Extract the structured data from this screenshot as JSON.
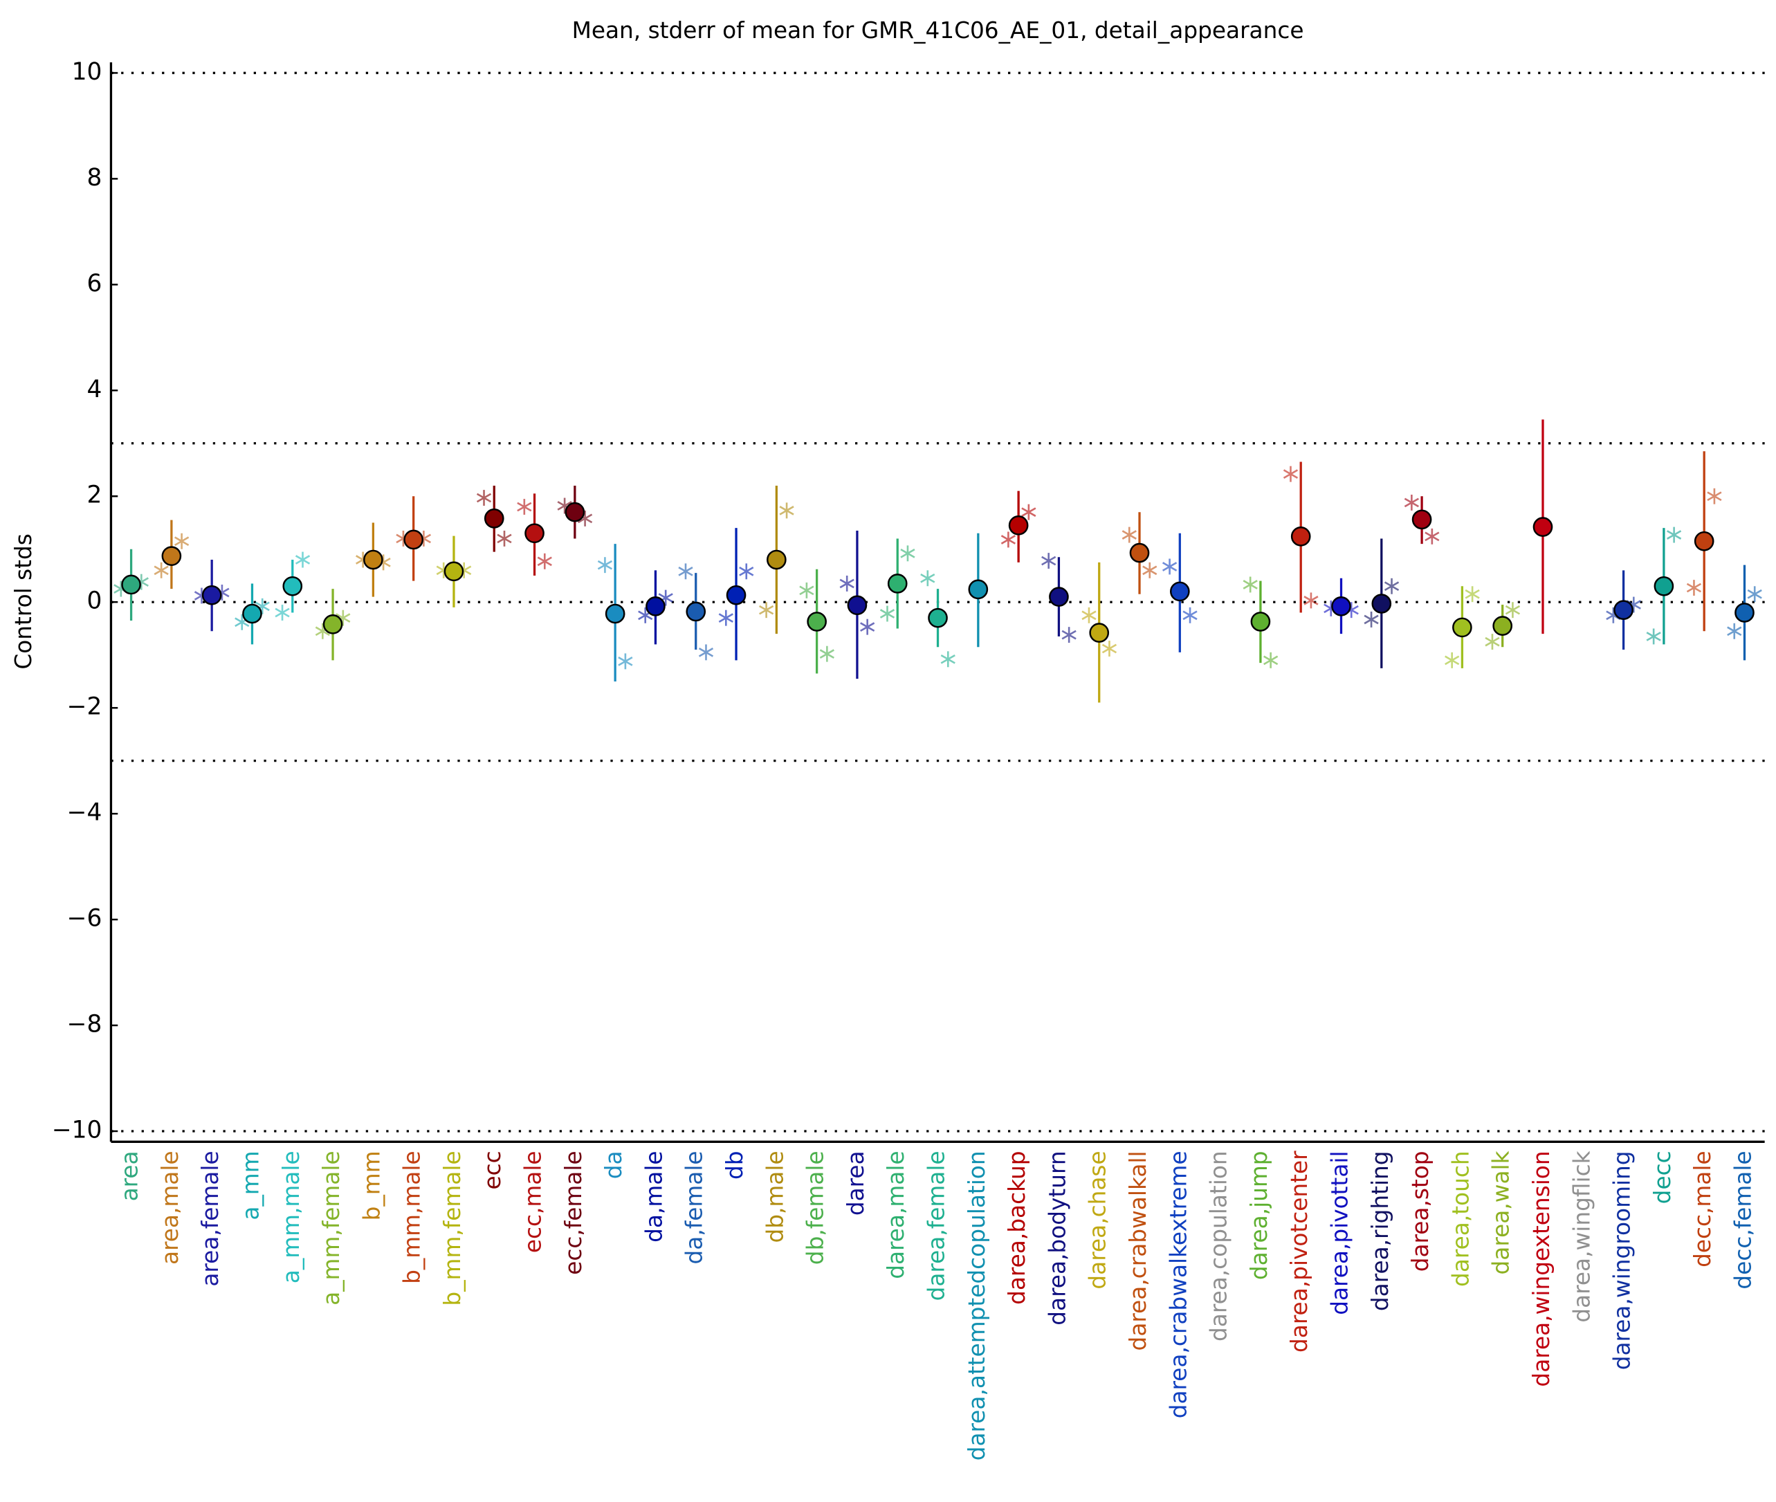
{
  "chart_data": {
    "type": "errorbar",
    "title": "Mean, stderr of mean for GMR_41C06_AE_01, detail_appearance",
    "y_label": "Control stds",
    "categories": [
      "area",
      "area,male",
      "area,female",
      "a_mm",
      "a_mm,male",
      "a_mm,female",
      "b_mm",
      "b_mm,male",
      "b_mm,female",
      "ecc",
      "ecc,male",
      "ecc,female",
      "da",
      "da,male",
      "da,female",
      "db",
      "db,male",
      "db,female",
      "darea",
      "darea,male",
      "darea,female",
      "darea,attemptedcopulation",
      "darea,backup",
      "darea,bodyturn",
      "darea,chase",
      "darea,crabwalkall",
      "darea,crabwalkextreme",
      "darea,copulation",
      "darea,jump",
      "darea,pivotcenter",
      "darea,pivottail",
      "darea,righting",
      "darea,stop",
      "darea,touch",
      "darea,walk",
      "darea,wingextension",
      "darea,wingflick",
      "darea,wingrooming",
      "decc",
      "decc,male",
      "decc,female"
    ],
    "colors": [
      "#2ea87e",
      "#c0761a",
      "#1a1aa0",
      "#14a8b0",
      "#22bcbc",
      "#84b42a",
      "#c08012",
      "#c24012",
      "#b4b410",
      "#800000",
      "#b41010",
      "#6e0010",
      "#1a8cc0",
      "#0010a0",
      "#1a5cb0",
      "#0020b4",
      "#b08c10",
      "#4cb04c",
      "#101090",
      "#2eb070",
      "#1eb090",
      "#1090b0",
      "#b40000",
      "#101080",
      "#c0a812",
      "#c05010",
      "#1040c0",
      "#909090",
      "#5eb030",
      "#c02010",
      "#1010c0",
      "#101060",
      "#a00010",
      "#a0c020",
      "#8cb020",
      "#c00010",
      "#909090",
      "#1030a0",
      "#10a090",
      "#c04010",
      "#1060b0"
    ],
    "mean": [
      0.33,
      0.87,
      0.13,
      -0.22,
      0.3,
      -0.42,
      0.8,
      1.18,
      0.58,
      1.58,
      1.3,
      1.7,
      -0.22,
      -0.08,
      -0.18,
      0.13,
      0.8,
      -0.37,
      -0.06,
      0.35,
      -0.3,
      0.24,
      1.45,
      0.1,
      -0.58,
      0.93,
      0.2,
      null,
      -0.37,
      1.24,
      -0.08,
      -0.03,
      1.56,
      -0.48,
      -0.45,
      1.42,
      null,
      -0.15,
      0.3,
      1.15,
      -0.2
    ],
    "err_low": [
      -0.35,
      0.25,
      -0.55,
      -0.8,
      -0.2,
      -1.1,
      0.1,
      0.4,
      -0.1,
      0.95,
      0.5,
      1.2,
      -1.5,
      -0.8,
      -0.9,
      -1.1,
      -0.6,
      -1.35,
      -1.45,
      -0.5,
      -0.85,
      -0.85,
      0.75,
      -0.65,
      -1.9,
      0.15,
      -0.95,
      null,
      -1.15,
      -0.2,
      -0.6,
      -1.25,
      1.1,
      -1.25,
      -0.85,
      -0.6,
      null,
      -0.9,
      -0.8,
      -0.55,
      -1.1
    ],
    "err_high": [
      1.0,
      1.55,
      0.8,
      0.35,
      0.8,
      0.25,
      1.5,
      2.0,
      1.25,
      2.2,
      2.05,
      2.2,
      1.1,
      0.6,
      0.55,
      1.4,
      2.2,
      0.62,
      1.35,
      1.2,
      0.25,
      1.3,
      2.1,
      0.85,
      0.75,
      1.7,
      1.3,
      null,
      0.4,
      2.65,
      0.45,
      1.2,
      2.0,
      0.3,
      -0.05,
      3.45,
      null,
      0.6,
      1.4,
      2.85,
      0.7
    ],
    "star_left": [
      0.25,
      0.6,
      0.12,
      -0.38,
      -0.2,
      -0.55,
      0.8,
      1.2,
      0.6,
      1.97,
      1.8,
      1.82,
      0.7,
      -0.25,
      0.58,
      -0.3,
      -0.15,
      0.22,
      0.35,
      -0.22,
      0.45,
      null,
      1.18,
      0.78,
      -0.25,
      1.27,
      0.67,
      null,
      0.33,
      2.42,
      -0.12,
      -0.33,
      1.88,
      -1.1,
      -0.75,
      null,
      null,
      -0.25,
      -0.65,
      0.27,
      -0.55
    ],
    "star_right": [
      0.38,
      1.15,
      0.18,
      -0.08,
      0.8,
      -0.3,
      0.75,
      1.2,
      0.6,
      1.2,
      0.77,
      1.58,
      -1.12,
      0.08,
      -0.95,
      0.58,
      1.73,
      -0.98,
      -0.47,
      0.92,
      -1.08,
      null,
      1.7,
      -0.62,
      -0.88,
      0.6,
      -0.25,
      null,
      -1.1,
      0.03,
      -0.15,
      0.3,
      1.24,
      0.15,
      -0.15,
      null,
      null,
      -0.05,
      1.27,
      2.0,
      0.15
    ],
    "reference_lines": [
      10,
      3,
      0,
      -3,
      -10
    ],
    "ylim": [
      -10.2,
      10.2
    ],
    "yticks": [
      {
        "value": -10,
        "label": "−10"
      },
      {
        "value": -8,
        "label": "−8"
      },
      {
        "value": -6,
        "label": "−6"
      },
      {
        "value": -4,
        "label": "−4"
      },
      {
        "value": -2,
        "label": "−2"
      },
      0,
      2,
      4,
      6,
      8,
      10
    ]
  }
}
